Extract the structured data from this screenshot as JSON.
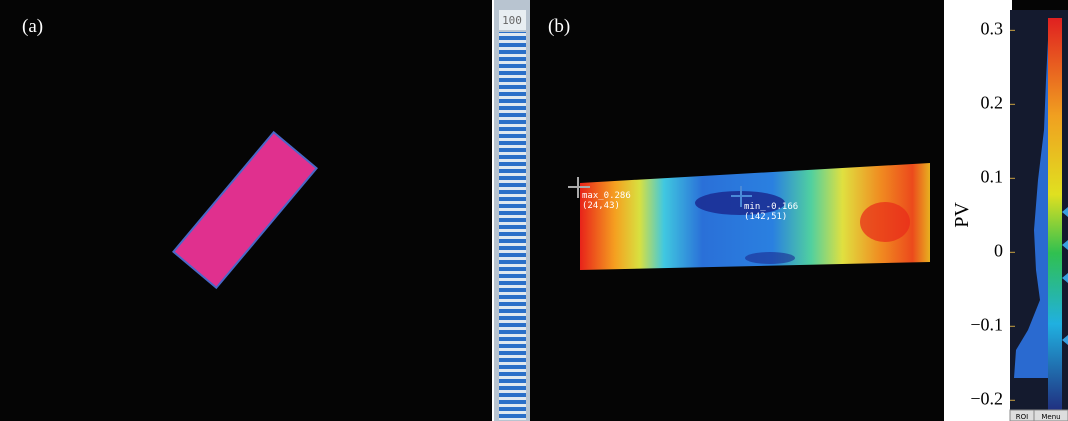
{
  "panels": {
    "a": {
      "label": "(a)",
      "strip_label": "100"
    },
    "b": {
      "label": "(b)",
      "max_marker": {
        "label": "max_0.286",
        "coords": "(24,43)"
      },
      "min_marker": {
        "label": "min_-0.166",
        "coords": "(142,51)"
      },
      "scale": {
        "label": "PV",
        "ylim": [
          -0.228,
          0.341
        ],
        "yticks": [
          0.3,
          0.2,
          0.1,
          0,
          {
            "value": -0.1,
            "label": "−0.1"
          },
          {
            "value": -0.2,
            "label": "−0.2"
          }
        ]
      },
      "buttons": [
        "ROI",
        "Menu"
      ]
    }
  }
}
